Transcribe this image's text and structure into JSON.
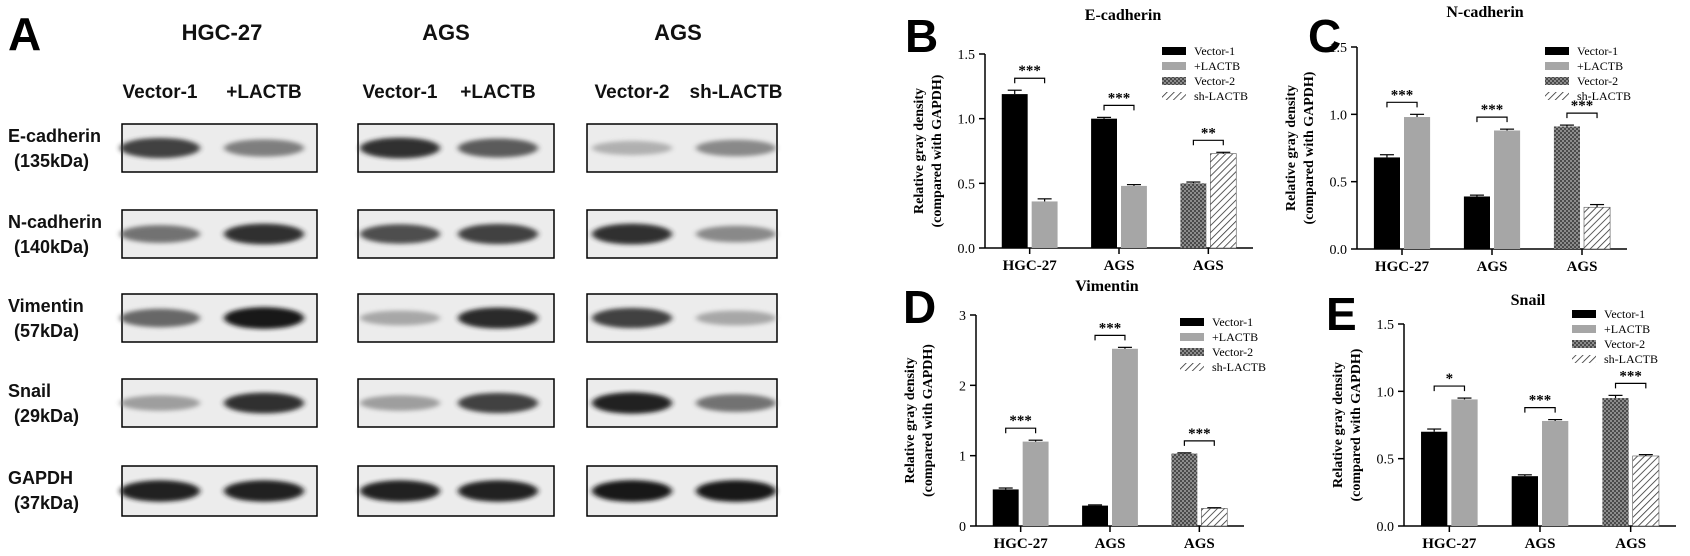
{
  "panel_a": {
    "letter": "A",
    "groups": [
      {
        "header": "HGC-27",
        "lanes": [
          "Vector-1",
          "+LACTB"
        ]
      },
      {
        "header": "AGS",
        "lanes": [
          "Vector-1",
          "+LACTB"
        ]
      },
      {
        "header": "AGS",
        "lanes": [
          "Vector-2",
          "sh-LACTB"
        ]
      }
    ],
    "rows": [
      {
        "name": "E-cadherin",
        "mw": "(135kDa)",
        "intensity": [
          [
            0.85,
            0.6
          ],
          [
            0.9,
            0.75
          ],
          [
            0.35,
            0.55
          ]
        ]
      },
      {
        "name": "N-cadherin",
        "mw": "(140kDa)",
        "intensity": [
          [
            0.65,
            0.9
          ],
          [
            0.8,
            0.85
          ],
          [
            0.9,
            0.55
          ]
        ]
      },
      {
        "name": "Vimentin",
        "mw": "(57kDa)",
        "intensity": [
          [
            0.7,
            0.98
          ],
          [
            0.4,
            0.92
          ],
          [
            0.85,
            0.4
          ]
        ]
      },
      {
        "name": "Snail",
        "mw": "(29kDa)",
        "intensity": [
          [
            0.45,
            0.9
          ],
          [
            0.45,
            0.85
          ],
          [
            0.95,
            0.65
          ]
        ]
      },
      {
        "name": "GAPDH",
        "mw": "(37kDa)",
        "intensity": [
          [
            0.95,
            0.95
          ],
          [
            0.95,
            0.95
          ],
          [
            0.98,
            0.98
          ]
        ]
      }
    ]
  },
  "colors": {
    "black": "#000000",
    "gray": "#a6a6a6",
    "checker": "#6e6e6e",
    "hatch": "#333333"
  },
  "chart_data": [
    {
      "id": "B",
      "letter": "B",
      "type": "bar",
      "title": "E-cadherin",
      "ylabel": [
        "Relative gray density",
        "(compared with GAPDH)"
      ],
      "categories": [
        "HGC-27",
        "AGS",
        "AGS"
      ],
      "ylim": [
        0,
        1.5
      ],
      "yticks": [
        "0.0",
        "0.5",
        "1.0",
        "1.5"
      ],
      "legend": [
        "Vector-1",
        "+LACTB",
        "Vector-2",
        "sh-LACTB"
      ],
      "bars": [
        {
          "group": 0,
          "series": "Vector-1",
          "value": 1.19,
          "err": 0.03
        },
        {
          "group": 0,
          "series": "+LACTB",
          "value": 0.36,
          "err": 0.02
        },
        {
          "group": 1,
          "series": "Vector-1",
          "value": 1.0,
          "err": 0.01
        },
        {
          "group": 1,
          "series": "+LACTB",
          "value": 0.48,
          "err": 0.01
        },
        {
          "group": 2,
          "series": "Vector-2",
          "value": 0.5,
          "err": 0.01
        },
        {
          "group": 2,
          "series": "sh-LACTB",
          "value": 0.73,
          "err": 0.01
        }
      ],
      "sig": [
        "***",
        "***",
        "**"
      ]
    },
    {
      "id": "C",
      "letter": "C",
      "type": "bar",
      "title": "N-cadherin",
      "ylabel": [
        "Relative gray density",
        "(compared with GAPDH)"
      ],
      "categories": [
        "HGC-27",
        "AGS",
        "AGS"
      ],
      "ylim": [
        0,
        1.5
      ],
      "yticks": [
        "0.0",
        "0.5",
        "1.0",
        "1.5"
      ],
      "legend": [
        "Vector-1",
        "+LACTB",
        "Vector-2",
        "sh-LACTB"
      ],
      "bars": [
        {
          "group": 0,
          "series": "Vector-1",
          "value": 0.68,
          "err": 0.02
        },
        {
          "group": 0,
          "series": "+LACTB",
          "value": 0.98,
          "err": 0.02
        },
        {
          "group": 1,
          "series": "Vector-1",
          "value": 0.39,
          "err": 0.01
        },
        {
          "group": 1,
          "series": "+LACTB",
          "value": 0.88,
          "err": 0.01
        },
        {
          "group": 2,
          "series": "Vector-2",
          "value": 0.91,
          "err": 0.01
        },
        {
          "group": 2,
          "series": "sh-LACTB",
          "value": 0.31,
          "err": 0.02
        }
      ],
      "sig": [
        "***",
        "***",
        "***"
      ]
    },
    {
      "id": "D",
      "letter": "D",
      "type": "bar",
      "title": "Vimentin",
      "ylabel": [
        "Relative gray density",
        "(compared with GAPDH)"
      ],
      "categories": [
        "HGC-27",
        "AGS",
        "AGS"
      ],
      "ylim": [
        0,
        3
      ],
      "yticks": [
        "0",
        "1",
        "2",
        "3"
      ],
      "legend": [
        "Vector-1",
        "+LACTB",
        "Vector-2",
        "sh-LACTB"
      ],
      "bars": [
        {
          "group": 0,
          "series": "Vector-1",
          "value": 0.52,
          "err": 0.02
        },
        {
          "group": 0,
          "series": "+LACTB",
          "value": 1.2,
          "err": 0.02
        },
        {
          "group": 1,
          "series": "Vector-1",
          "value": 0.29,
          "err": 0.01
        },
        {
          "group": 1,
          "series": "+LACTB",
          "value": 2.52,
          "err": 0.02
        },
        {
          "group": 2,
          "series": "Vector-2",
          "value": 1.03,
          "err": 0.01
        },
        {
          "group": 2,
          "series": "sh-LACTB",
          "value": 0.25,
          "err": 0.01
        }
      ],
      "sig": [
        "***",
        "***",
        "***"
      ]
    },
    {
      "id": "E",
      "letter": "E",
      "type": "bar",
      "title": "Snail",
      "ylabel": [
        "Relative gray density",
        "(compared with GAPDH)"
      ],
      "categories": [
        "HGC-27",
        "AGS",
        "AGS"
      ],
      "ylim": [
        0,
        1.5
      ],
      "yticks": [
        "0.0",
        "0.5",
        "1.0",
        "1.5"
      ],
      "legend": [
        "Vector-1",
        "+LACTB",
        "Vector-2",
        "sh-LACTB"
      ],
      "bars": [
        {
          "group": 0,
          "series": "Vector-1",
          "value": 0.7,
          "err": 0.02
        },
        {
          "group": 0,
          "series": "+LACTB",
          "value": 0.94,
          "err": 0.01
        },
        {
          "group": 1,
          "series": "Vector-1",
          "value": 0.37,
          "err": 0.01
        },
        {
          "group": 1,
          "series": "+LACTB",
          "value": 0.78,
          "err": 0.01
        },
        {
          "group": 2,
          "series": "Vector-2",
          "value": 0.95,
          "err": 0.02
        },
        {
          "group": 2,
          "series": "sh-LACTB",
          "value": 0.52,
          "err": 0.01
        }
      ],
      "sig": [
        "*",
        "***",
        "***"
      ]
    }
  ]
}
